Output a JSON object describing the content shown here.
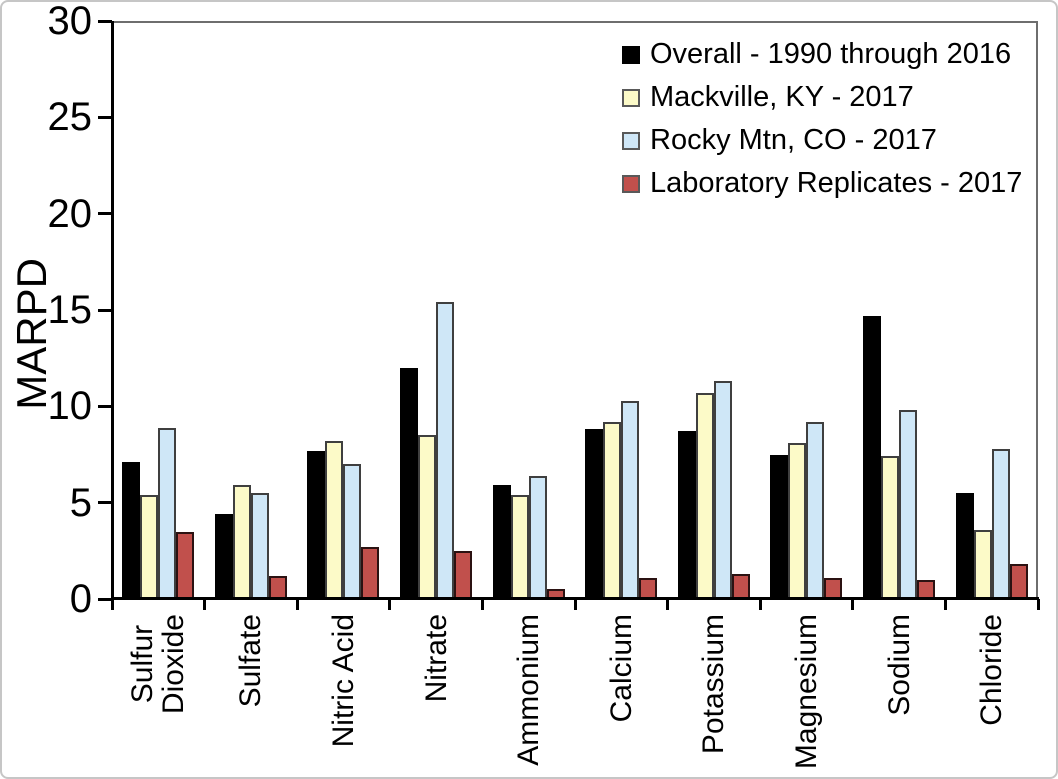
{
  "chart_data": {
    "type": "bar",
    "title": "",
    "xlabel": "",
    "ylabel": "MARPD",
    "ylim": [
      0,
      30
    ],
    "yticks": [
      0,
      5,
      10,
      15,
      20,
      25,
      30
    ],
    "grid": false,
    "legend_position": "top-right",
    "categories": [
      "Sulfur\nDioxide",
      "Sulfate",
      "Nitric Acid",
      "Nitrate",
      "Ammonium",
      "Calcium",
      "Potassium",
      "Magnesium",
      "Sodium",
      "Chloride"
    ],
    "series": [
      {
        "name": "Overall - 1990 through 2016",
        "color": "#000000",
        "border": "#000000",
        "values": [
          7.1,
          4.4,
          7.7,
          12.0,
          5.9,
          8.8,
          8.7,
          7.5,
          14.7,
          5.5
        ]
      },
      {
        "name": "Mackville, KY - 2017",
        "color": "#FCFAC8",
        "border": "#3f3f3f",
        "values": [
          5.4,
          5.9,
          8.2,
          8.5,
          5.4,
          9.2,
          10.7,
          8.1,
          7.4,
          3.6
        ]
      },
      {
        "name": "Rocky Mtn, CO - 2017",
        "color": "#CFE7F7",
        "border": "#3f3f3f",
        "values": [
          8.9,
          5.5,
          7.0,
          15.4,
          6.4,
          10.3,
          11.3,
          9.2,
          9.8,
          7.8
        ]
      },
      {
        "name": "Laboratory Replicates - 2017",
        "color": "#C1504C",
        "border": "#2b1212",
        "values": [
          3.5,
          1.2,
          2.7,
          2.5,
          0.5,
          1.1,
          1.3,
          1.1,
          1.0,
          1.8
        ]
      }
    ]
  },
  "styling": {
    "plot_frame_color": "#6e6e6e",
    "axis_color": "#000000",
    "outer_border_color": "#c6c6c6",
    "background": "#ffffff"
  }
}
